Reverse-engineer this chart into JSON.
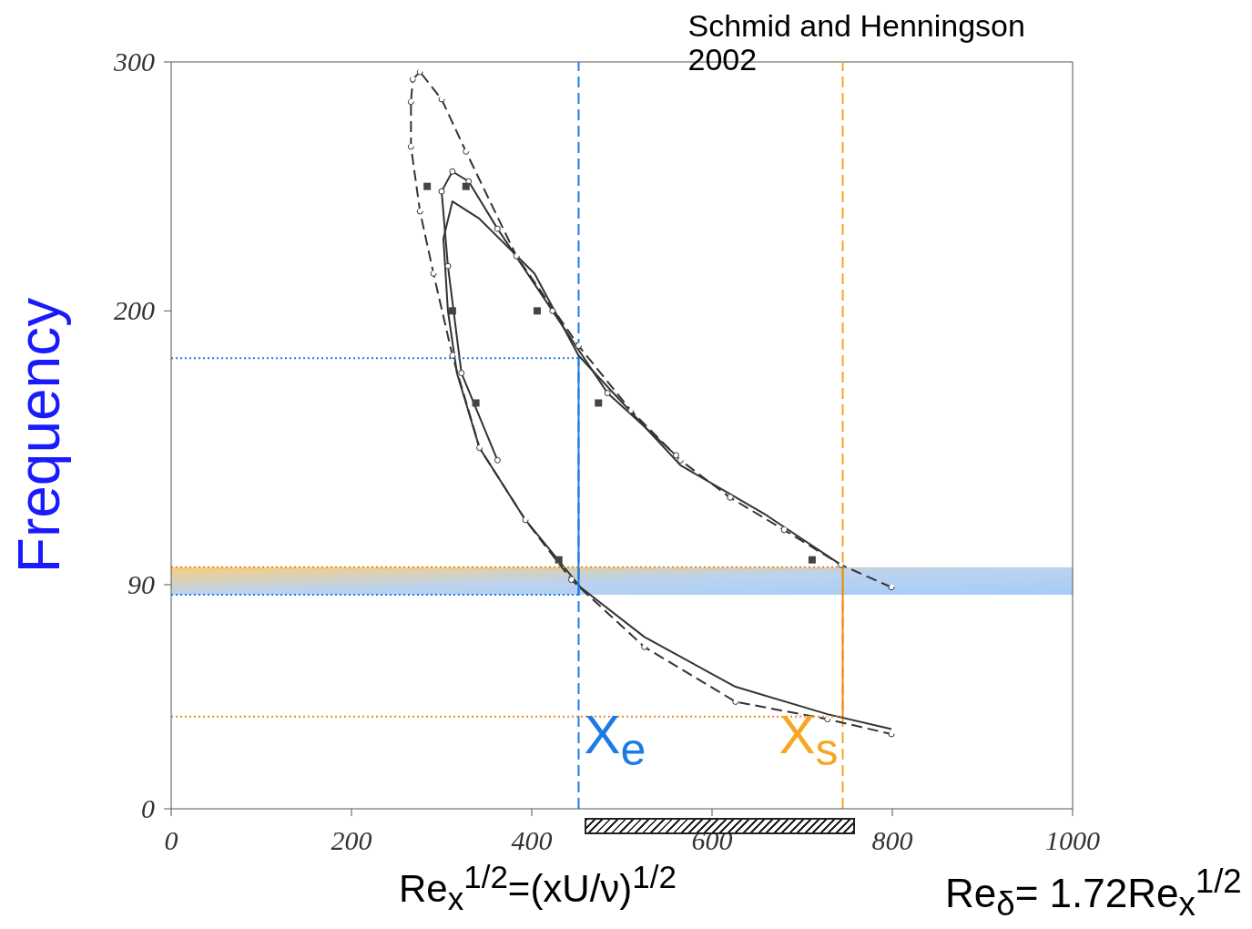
{
  "chart_data": {
    "type": "line",
    "xlabel": "Re$_{x}$$^{1/2}$=(xU/ν)$^{1/2}$",
    "ylabel": "Frequency",
    "xlim": [
      0,
      1000
    ],
    "xticks": [
      0,
      200,
      400,
      600,
      800,
      1000
    ],
    "ylim": [
      0,
      300
    ],
    "yticks": [
      0,
      {
        "value": 90,
        "label": "90"
      },
      200,
      300
    ],
    "series": [
      {
        "line_style": "dashed",
        "marker": "circle",
        "color": "#333333",
        "x": [
          799,
          743,
          680,
          620,
          565,
          510,
          452,
          383,
          327,
          300,
          276,
          268,
          266,
          266,
          276,
          291,
          312,
          342,
          393,
          444,
          525,
          626,
          728,
          799
        ],
        "values": [
          89,
          98,
          112,
          125,
          140,
          160,
          186,
          222,
          264,
          285,
          296,
          293,
          284,
          266,
          240,
          215,
          182,
          145,
          116,
          92,
          65,
          43,
          36,
          30
        ]
      },
      {
        "line_style": "solid",
        "marker": "circle",
        "color": "#333333",
        "x": [
          560,
          484,
          423,
          362,
          330,
          312,
          300,
          307,
          322,
          362
        ],
        "values": [
          142,
          167,
          200,
          233,
          252,
          256,
          248,
          218,
          175,
          140
        ]
      },
      {
        "line_style": "solid",
        "marker": "none",
        "color": "#333333",
        "x": [
          743,
          660,
          565,
          452,
          403,
          342,
          312,
          302,
          307,
          317,
          342,
          393,
          454,
          525,
          626,
          728,
          799
        ],
        "values": [
          98,
          118,
          138,
          182,
          215,
          237,
          244,
          229,
          200,
          175,
          145,
          116,
          89,
          69,
          49,
          38,
          32
        ]
      },
      {
        "type": "scatter",
        "marker": "square",
        "color": "#444444",
        "x": [
          284,
          327,
          312,
          406,
          338,
          474,
          430,
          711
        ],
        "values": [
          250,
          250,
          200,
          200,
          163,
          163,
          100,
          100
        ]
      },
      {
        "type": "line",
        "line_style": "dotted",
        "marker": "none",
        "color": "#1e7be6",
        "x": [
          0,
          452
        ],
        "values": [
          181,
          181
        ]
      },
      {
        "type": "line",
        "line_style": "dotted",
        "marker": "none",
        "color": "#1e7be6",
        "x": [
          0,
          452
        ],
        "values": [
          86,
          86
        ]
      },
      {
        "type": "line",
        "line_style": "dotted",
        "marker": "none",
        "color": "#f08a10",
        "x": [
          0,
          745
        ],
        "values": [
          97,
          97
        ]
      },
      {
        "type": "line",
        "line_style": "dotted",
        "marker": "none",
        "color": "#f08a10",
        "x": [
          0,
          745
        ],
        "values": [
          37,
          37
        ]
      },
      {
        "type": "line",
        "line_style": "solid",
        "marker": "none",
        "color": "#1e7be6",
        "x": [
          452,
          452
        ],
        "values": [
          86,
          181
        ]
      },
      {
        "type": "line",
        "line_style": "solid",
        "marker": "none",
        "color": "#f08a10",
        "x": [
          745,
          745
        ],
        "values": [
          37,
          97
        ]
      }
    ],
    "ref_lines": [
      {
        "axis": "x",
        "value": 452,
        "label": null,
        "color": "#1e7be6",
        "line_style": "dashed"
      },
      {
        "axis": "x",
        "value": 745,
        "label": null,
        "color": "#f5a623",
        "line_style": "dashed"
      }
    ],
    "bands": [
      {
        "axis": "y",
        "from": 86,
        "to": 97,
        "label": null,
        "color": "#a9c8ec"
      }
    ],
    "annotations": [
      "Schmid and Henningson 2002",
      {
        "text": "X$_{e}$",
        "x": 452,
        "y": 15
      },
      {
        "text": "X$_{s}$",
        "x": 745,
        "y": 15
      },
      "Re$_{δ}$= 1.72Re$_{x}$$^{1/2}$"
    ]
  }
}
